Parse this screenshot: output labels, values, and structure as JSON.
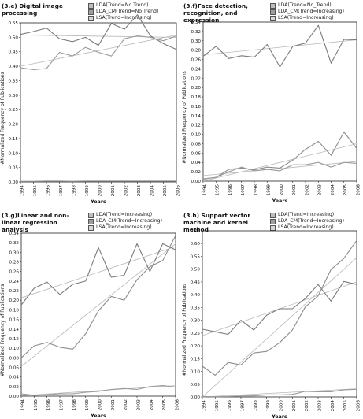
{
  "chart_data": [
    {
      "type": "line",
      "title": "(3.e) Digital image processing",
      "xlabel": "Years",
      "ylabel": "#Normalized Frequency of Publications",
      "categories": [
        "1994",
        "1995",
        "1996",
        "1997",
        "1998",
        "1999",
        "2000",
        "2001",
        "2002",
        "2003",
        "2004",
        "2005",
        "2006"
      ],
      "ylim": [
        0,
        0.55
      ],
      "yticks": [
        "0.00",
        "0.05",
        "0.10",
        "0.15",
        "0.20",
        "0.25",
        "0.30",
        "0.35",
        "0.40",
        "0.45",
        "0.50",
        "0.55"
      ],
      "series": [
        {
          "name": "LDA(Trend=No Trend)",
          "values": [
            0.51,
            0.52,
            0.532,
            0.495,
            0.485,
            0.5,
            0.472,
            0.548,
            0.528,
            0.578,
            0.505,
            0.478,
            0.458
          ],
          "trend": [
            0.508,
            0.5
          ]
        },
        {
          "name": "LDA_CM(Trend=No Trend)",
          "values": [
            0.002,
            0.002,
            0.003,
            0.003,
            0.002,
            0.003,
            0.003,
            0.003,
            0.003,
            0.003,
            0.003,
            0.003,
            0.003
          ],
          "trend": [
            0.002,
            0.003
          ]
        },
        {
          "name": "LSA(Trend=Increasing)",
          "values": [
            0.395,
            0.388,
            0.392,
            0.448,
            0.435,
            0.465,
            0.448,
            0.435,
            0.495,
            0.505,
            0.5,
            0.488,
            0.505
          ],
          "trend": [
            0.4,
            0.508
          ]
        }
      ]
    },
    {
      "type": "line",
      "title": "(3.f)Face detection, recognition, and expression",
      "xlabel": "Years",
      "ylabel": "#Normalized Frequency of Publications",
      "categories": [
        "1994",
        "1995",
        "1996",
        "1997",
        "1998",
        "1999",
        "2000",
        "2001",
        "2002",
        "2003",
        "2004",
        "2005",
        "2006"
      ],
      "ylim": [
        0,
        0.34
      ],
      "yticks": [
        "0.00",
        "0.02",
        "0.04",
        "0.06",
        "0.08",
        "0.10",
        "0.12",
        "0.14",
        "0.16",
        "0.18",
        "0.20",
        "0.22",
        "0.24",
        "0.26",
        "0.28",
        "0.30",
        "0.32",
        "0.34"
      ],
      "series": [
        {
          "name": "LDA(Trend=No_Trend)",
          "values": [
            0.267,
            0.288,
            0.262,
            0.268,
            0.265,
            0.292,
            0.244,
            0.288,
            0.295,
            0.333,
            0.252,
            0.303,
            0.302
          ],
          "trend": [
            0.27,
            0.302
          ]
        },
        {
          "name": "LDA_CM(Trend=Increasing)",
          "values": [
            0.005,
            0.008,
            0.025,
            0.028,
            0.024,
            0.03,
            0.028,
            0.045,
            0.068,
            0.085,
            0.055,
            0.105,
            0.07
          ],
          "trend": [
            0.0,
            0.08
          ]
        },
        {
          "name": "LSA(Trend=Increasing)",
          "values": [
            0.004,
            0.008,
            0.02,
            0.03,
            0.022,
            0.025,
            0.022,
            0.035,
            0.035,
            0.04,
            0.03,
            0.04,
            0.038
          ],
          "trend": [
            0.012,
            0.042
          ]
        }
      ]
    },
    {
      "type": "line",
      "title": "(3.g)Linear and non-linear regression analysis",
      "xlabel": "Years",
      "ylabel": "#Normalized Frequency of Publications",
      "categories": [
        "1994",
        "1995",
        "1996",
        "1997",
        "1998",
        "1999",
        "2000",
        "2001",
        "2002",
        "2003",
        "2004",
        "2005",
        "2006"
      ],
      "ylim": [
        0,
        0.34
      ],
      "yticks": [
        "0.00",
        "0.02",
        "0.04",
        "0.06",
        "0.08",
        "0.10",
        "0.12",
        "0.14",
        "0.16",
        "0.18",
        "0.20",
        "0.22",
        "0.24",
        "0.26",
        "0.28",
        "0.30",
        "0.32",
        "0.34"
      ],
      "series": [
        {
          "name": "LDA(Trend=Increasing)",
          "values": [
            0.19,
            0.225,
            0.238,
            0.212,
            0.233,
            0.24,
            0.31,
            0.248,
            0.252,
            0.318,
            0.26,
            0.318,
            0.305
          ],
          "trend": [
            0.205,
            0.312
          ]
        },
        {
          "name": "LDA_CM(Trend=Increasing)",
          "values": [
            0.08,
            0.105,
            0.112,
            0.102,
            0.098,
            0.13,
            0.178,
            0.208,
            0.2,
            0.243,
            0.27,
            0.283,
            0.335
          ],
          "trend": [
            0.062,
            0.318
          ]
        },
        {
          "name": "LSA(Trend=Increasing)",
          "values": [
            0.005,
            0.002,
            0.003,
            0.005,
            0.005,
            0.008,
            0.01,
            0.014,
            0.016,
            0.014,
            0.02,
            0.022,
            0.019
          ],
          "trend": [
            0.001,
            0.022
          ]
        }
      ]
    },
    {
      "type": "line",
      "title": "(3.h) Support vector machine and kernel method",
      "xlabel": "Years",
      "ylabel": "#Normalized Frequency of Publications",
      "categories": [
        "1994",
        "1995",
        "1996",
        "1997",
        "1998",
        "1999",
        "2000",
        "2001",
        "2002",
        "2003",
        "2004",
        "2005",
        "2006"
      ],
      "ylim": [
        0,
        0.65
      ],
      "yticks": [
        "0.00",
        "0.05",
        "0.10",
        "0.15",
        "0.20",
        "0.25",
        "0.30",
        "0.35",
        "0.40",
        "0.45",
        "0.50",
        "0.55",
        "0.60",
        "0.65"
      ],
      "series": [
        {
          "name": "LDA(Trend=Increasing)",
          "values": [
            0.265,
            0.255,
            0.245,
            0.3,
            0.262,
            0.32,
            0.345,
            0.345,
            0.385,
            0.44,
            0.375,
            0.452,
            0.44
          ],
          "trend": [
            0.24,
            0.45
          ]
        },
        {
          "name": "LDA_CM(Trend=Increasing)",
          "values": [
            0.12,
            0.085,
            0.135,
            0.125,
            0.172,
            0.178,
            0.212,
            0.262,
            0.352,
            0.395,
            0.498,
            0.542,
            0.612
          ],
          "trend": [
            0.0,
            0.545
          ]
        },
        {
          "name": "LSA(Trend=Increasing)",
          "values": [
            0.002,
            0.001,
            0.002,
            0.004,
            0.004,
            0.008,
            0.008,
            0.01,
            0.022,
            0.02,
            0.02,
            0.028,
            0.03
          ],
          "trend": [
            0.0,
            0.032
          ]
        }
      ]
    }
  ],
  "style": {
    "series_colors": [
      "#7a7a7a",
      "#8c8c8c",
      "#9a9a9a"
    ],
    "swatch_fills": [
      "#bdbdbd",
      "#9e9e9e",
      "#d6d6d6"
    ],
    "trend_color": "#b8b8b8"
  }
}
